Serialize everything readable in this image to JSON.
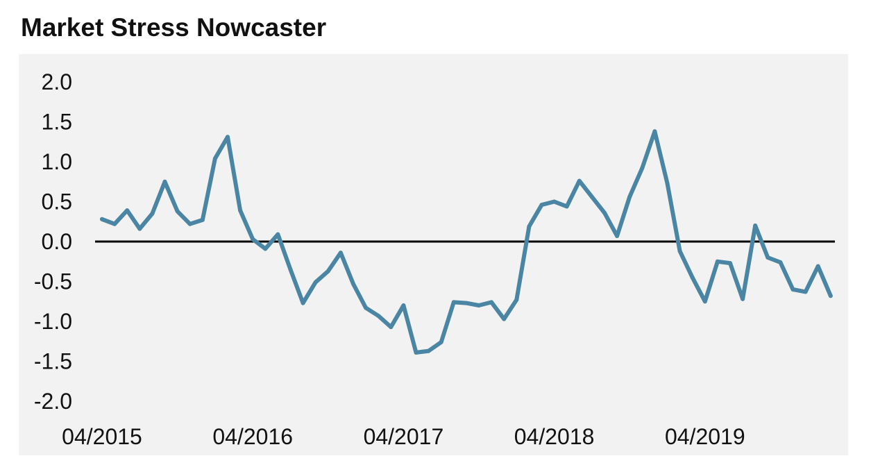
{
  "chart_data": {
    "type": "line",
    "title": "Market Stress Nowcaster",
    "xlabel": "",
    "ylabel": "",
    "ylim": [
      -2.0,
      2.0
    ],
    "yticks": [
      "2.0",
      "1.5",
      "1.0",
      "0.5",
      "0.0",
      "-0.5",
      "-1.0",
      "-1.5",
      "-2.0"
    ],
    "xticks": [
      "04/2015",
      "04/2016",
      "04/2017",
      "04/2018",
      "04/2019"
    ],
    "x_start": "04/2015",
    "x_interval": "month",
    "reference_line": 0.0,
    "grid": false,
    "line_color": "#4a86a3",
    "series": [
      {
        "values": [
          0.28,
          0.22,
          0.39,
          0.16,
          0.35,
          0.75,
          0.38,
          0.22,
          0.27,
          1.04,
          1.31,
          0.39,
          0.03,
          -0.09,
          0.09,
          -0.35,
          -0.77,
          -0.51,
          -0.37,
          -0.14,
          -0.53,
          -0.83,
          -0.93,
          -1.07,
          -0.8,
          -1.39,
          -1.37,
          -1.26,
          -0.76,
          -0.77,
          -0.8,
          -0.76,
          -0.97,
          -0.73,
          0.19,
          0.46,
          0.5,
          0.44,
          0.76,
          0.56,
          0.36,
          0.07,
          0.56,
          0.92,
          1.38,
          0.73,
          -0.12,
          -0.45,
          -0.75,
          -0.25,
          -0.27,
          -0.72,
          0.2,
          -0.2,
          -0.26,
          -0.6,
          -0.63,
          -0.31,
          -0.68
        ]
      }
    ]
  }
}
